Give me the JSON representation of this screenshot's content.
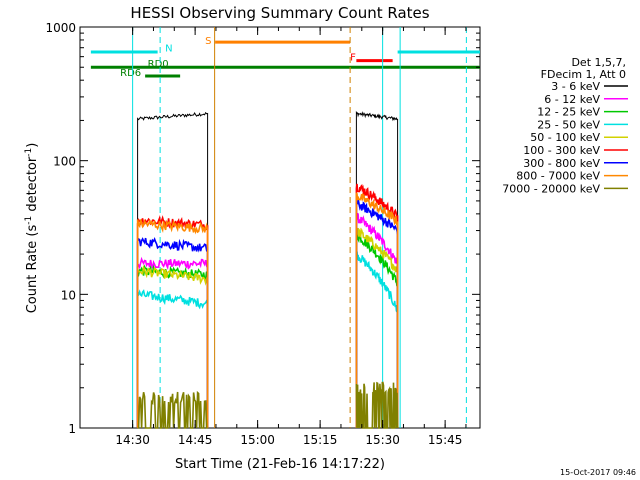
{
  "chart_data": {
    "type": "line",
    "title": "HESSI Observing Summary Count Rates",
    "xlabel": "Start Time (21-Feb-16 14:17:22)",
    "ylabel": "Count Rate (s",
    "ylabel_sup1": "-1",
    "ylabel_mid": " detector",
    "ylabel_sup2": "-1",
    "ylabel_end": ")",
    "yscale": "log",
    "ylim": [
      1,
      1000
    ],
    "xlim_minutes": [
      14.3333,
      15.9333
    ],
    "x_tick_labels": [
      "14:30",
      "14:45",
      "15:00",
      "15:15",
      "15:30",
      "15:45"
    ],
    "x_tick_values_hours": [
      14.5,
      14.75,
      15.0,
      15.25,
      15.5,
      15.75
    ],
    "y_tick_labels": [
      "1",
      "10",
      "100",
      "1000"
    ],
    "y_tick_values": [
      1,
      10,
      100,
      1000
    ],
    "legend_position": "right",
    "legend_header": [
      "Det 1,5,7,",
      "FDecim 1, Att 0"
    ],
    "series": [
      {
        "name": "3 - 6 keV",
        "color": "#000000",
        "seg1": [
          205,
          225
        ],
        "seg2": [
          225,
          205
        ]
      },
      {
        "name": "6 - 12 keV",
        "color": "#ff00ff",
        "seg1": [
          17,
          17
        ],
        "seg2": [
          38,
          17
        ]
      },
      {
        "name": "12 - 25 keV",
        "color": "#00c800",
        "seg1": [
          15,
          14
        ],
        "seg2": [
          28,
          12
        ]
      },
      {
        "name": "25 - 50 keV",
        "color": "#00e0e0",
        "seg1": [
          10,
          8.5
        ],
        "seg2": [
          20,
          7.5
        ]
      },
      {
        "name": "50 - 100 keV",
        "color": "#d2d200",
        "seg1": [
          15,
          13
        ],
        "seg2": [
          30,
          15
        ]
      },
      {
        "name": "100 - 300 keV",
        "color": "#ff0000",
        "seg1": [
          36,
          33
        ],
        "seg2": [
          65,
          38
        ]
      },
      {
        "name": "300 - 800 keV",
        "color": "#0000ff",
        "seg1": [
          25,
          22
        ],
        "seg2": [
          48,
          30
        ]
      },
      {
        "name": "800 - 7000 keV",
        "color": "#ff8800",
        "seg1": [
          34,
          31
        ],
        "seg2": [
          55,
          35
        ]
      },
      {
        "name": "7000 - 20000 keV",
        "color": "#808000",
        "seg1": [
          1.7,
          1.7
        ],
        "seg2": [
          2.0,
          1.8
        ]
      }
    ],
    "segment1_hours": [
      14.52,
      14.8
    ],
    "segment2_hours": [
      15.395,
      15.56
    ],
    "flags": [
      {
        "label": "N",
        "color": "#00e0e0",
        "y_pos": 650,
        "spans_hours": [
          [
            14.333,
            14.6
          ],
          [
            15.56,
            15.9
          ]
        ]
      },
      {
        "label": "S",
        "color": "#ff8000",
        "y_pos": 770,
        "spans_hours": [
          [
            14.83,
            15.37
          ]
        ]
      },
      {
        "label": "F",
        "color": "#ff0000",
        "y_pos": 560,
        "spans_hours": [
          [
            15.395,
            15.54
          ]
        ]
      },
      {
        "label": "RD0",
        "color": "#008000",
        "y_pos": 500,
        "spans_hours": [
          [
            14.333,
            15.9
          ]
        ]
      },
      {
        "label": "RD6",
        "color": "#008000",
        "y_pos": 430,
        "spans_hours": [
          [
            14.55,
            14.69
          ]
        ]
      }
    ],
    "vlines_cyan_solid_hours": [
      14.5,
      15.5,
      15.57
    ],
    "vlines_cyan_dashed_hours": [
      14.61,
      15.835
    ],
    "vlines_orange_solid_hours": [
      14.828
    ],
    "vlines_orange_dashed_hours": [
      15.37
    ]
  },
  "footer": {
    "timestamp": "15-Oct-2017 09:46"
  }
}
